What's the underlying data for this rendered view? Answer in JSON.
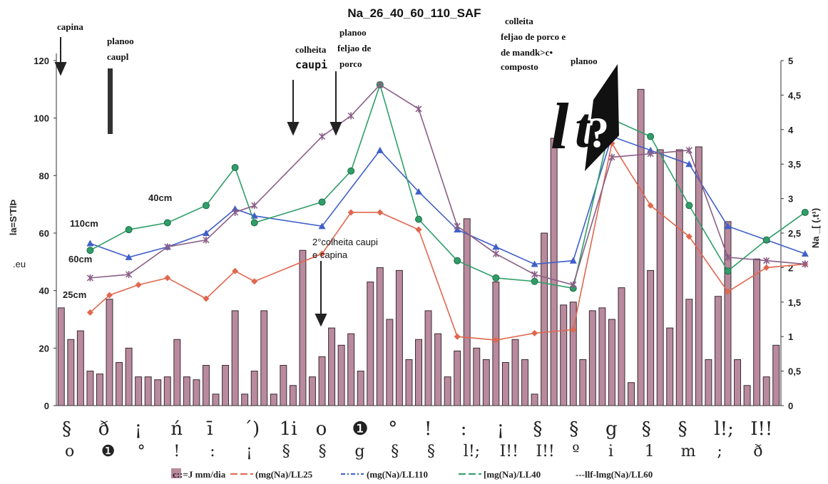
{
  "chart_data": {
    "type": "bar+line",
    "title": "Na_26_40_60_110_SAF",
    "left_axis": {
      "ylim": [
        0,
        120
      ],
      "ticks": [
        "0",
        "20",
        "40",
        "60",
        "80",
        "100",
        "120"
      ],
      "label": "la=S'TlÞ"
    },
    "right_axis": {
      "ylim": [
        0,
        5
      ],
      "ticks": [
        "0",
        "0,5",
        "1",
        "1,5",
        "2",
        "2,5",
        "3",
        "3,5",
        "4",
        "4,5",
        "5"
      ],
      "label": "Na _[ (.t¹)"
    },
    "bars": {
      "name": "mm/dia",
      "color": "#b98a9e",
      "values": [
        34,
        23,
        26,
        12,
        11,
        37,
        15,
        20,
        10,
        10,
        9,
        10,
        23,
        10,
        9,
        14,
        4,
        14,
        33,
        4,
        12,
        33,
        4,
        14,
        7,
        54,
        10,
        17,
        27,
        21,
        25,
        12,
        43,
        48,
        30,
        47,
        16,
        23,
        33,
        25,
        10,
        19,
        65,
        20,
        16,
        43,
        15,
        23,
        16,
        4,
        60,
        93,
        35,
        36,
        16,
        33,
        34,
        30,
        41,
        8,
        110,
        47,
        89,
        27,
        89,
        37,
        90,
        16,
        38,
        64,
        16,
        7,
        51,
        10,
        21
      ]
    },
    "series": [
      {
        "name": "(mg(Na)/LL25",
        "color": "#e0674e",
        "marker": "diamond",
        "points": [
          [
            3,
            1.35
          ],
          [
            5,
            1.6
          ],
          [
            8,
            1.75
          ],
          [
            11,
            1.85
          ],
          [
            15,
            1.55
          ],
          [
            18,
            1.95
          ],
          [
            20,
            1.8
          ],
          [
            27,
            2.2
          ],
          [
            30,
            2.8
          ],
          [
            33,
            2.8
          ],
          [
            37,
            2.55
          ],
          [
            41,
            1.0
          ],
          [
            45,
            0.95
          ],
          [
            49,
            1.05
          ],
          [
            53,
            1.1
          ],
          [
            57,
            3.8
          ],
          [
            61,
            2.9
          ],
          [
            65,
            2.45
          ],
          [
            69,
            1.65
          ],
          [
            73,
            2.0
          ],
          [
            77,
            2.05
          ]
        ]
      },
      {
        "name": "(mg(Na)/LL110",
        "color": "#3f5fc9",
        "marker": "triangle",
        "points": [
          [
            3,
            2.35
          ],
          [
            7,
            2.15
          ],
          [
            11,
            2.3
          ],
          [
            15,
            2.5
          ],
          [
            18,
            2.85
          ],
          [
            20,
            2.75
          ],
          [
            27,
            2.6
          ],
          [
            33,
            3.7
          ],
          [
            37,
            3.1
          ],
          [
            41,
            2.55
          ],
          [
            45,
            2.3
          ],
          [
            49,
            2.05
          ],
          [
            53,
            2.1
          ],
          [
            57,
            3.9
          ],
          [
            61,
            3.7
          ],
          [
            65,
            3.5
          ],
          [
            69,
            2.6
          ],
          [
            73,
            2.4
          ],
          [
            77,
            2.2
          ]
        ]
      },
      {
        "name": "[mg(Na)/LL40",
        "color": "#2f9e68",
        "marker": "circle",
        "points": [
          [
            3,
            2.25
          ],
          [
            7,
            2.55
          ],
          [
            11,
            2.65
          ],
          [
            15,
            2.9
          ],
          [
            18,
            3.45
          ],
          [
            20,
            2.65
          ],
          [
            27,
            2.95
          ],
          [
            30,
            3.4
          ],
          [
            33,
            4.65
          ],
          [
            37,
            2.7
          ],
          [
            41,
            2.1
          ],
          [
            45,
            1.85
          ],
          [
            49,
            1.8
          ],
          [
            53,
            1.7
          ],
          [
            57,
            4.15
          ],
          [
            61,
            3.9
          ],
          [
            65,
            2.9
          ],
          [
            69,
            1.95
          ],
          [
            73,
            2.4
          ],
          [
            77,
            2.8
          ]
        ]
      },
      {
        "name": "---llf-lmg(Na)/LL60",
        "color": "#8a5e86",
        "marker": "star",
        "points": [
          [
            3,
            1.85
          ],
          [
            7,
            1.9
          ],
          [
            11,
            2.3
          ],
          [
            15,
            2.4
          ],
          [
            18,
            2.8
          ],
          [
            20,
            2.9
          ],
          [
            27,
            3.9
          ],
          [
            30,
            4.2
          ],
          [
            33,
            4.65
          ],
          [
            37,
            4.3
          ],
          [
            41,
            2.6
          ],
          [
            45,
            2.2
          ],
          [
            49,
            1.9
          ],
          [
            53,
            1.75
          ],
          [
            57,
            3.6
          ],
          [
            61,
            3.65
          ],
          [
            65,
            3.7
          ],
          [
            69,
            2.15
          ],
          [
            73,
            2.1
          ],
          [
            77,
            2.05
          ]
        ]
      }
    ],
    "depth_labels": [
      "110cm",
      "40cm",
      "60cm",
      "25cm"
    ],
    "annotations": [
      {
        "text": "capina"
      },
      {
        "text": "planoo"
      },
      {
        "text": "caupl"
      },
      {
        "text": "colheita"
      },
      {
        "text": "caupi"
      },
      {
        "text": "planoo"
      },
      {
        "text": "feljao de"
      },
      {
        "text": "porco"
      },
      {
        "text": "colleita"
      },
      {
        "text": "feljao de porco e"
      },
      {
        "text": "de mandk>c•"
      },
      {
        "text": "composto"
      },
      {
        "text": "planoo"
      },
      {
        "text": "2°colheita caupi"
      },
      {
        "text": "e capina"
      }
    ],
    "legend": {
      "bar": "c::=J mm/dia",
      "lines": [
        "(mg(Na)/LL25",
        "(mg(Na)/LL110",
        "[mg(Na)/LL40",
        "---llf-lmg(Na)/LL60"
      ]
    },
    "left_axis_extra": ".eu",
    "x_axis_garble": [
      "§",
      "ð",
      "¡",
      "ń",
      "ī",
      "´)",
      "1i",
      "o",
      "❶",
      "°",
      "!",
      ":",
      "¡",
      "§",
      "§",
      "g",
      "§",
      "§",
      "l!;",
      "I!!",
      "I!!",
      "º",
      "i",
      "1",
      "m",
      ";",
      "ð",
      "ð"
    ]
  }
}
